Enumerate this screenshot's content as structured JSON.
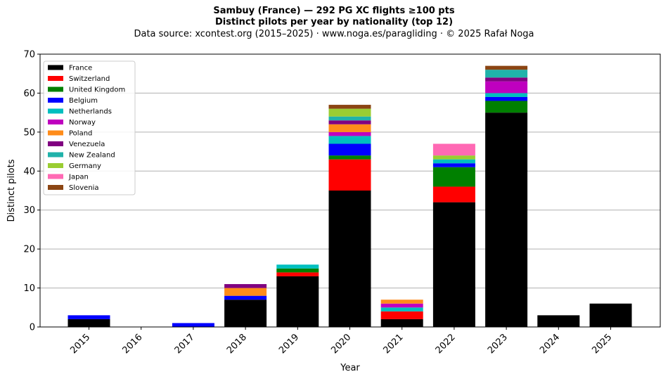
{
  "title_lines": [
    "Sambuy (France)  —  292 PG XC flights ≥100 pts",
    "Distinct pilots per year by nationality (top 12)",
    "Data source: xcontest.org (2015–2025)  ·  www.noga.es/paragliding  ·  © 2025 Rafał Noga"
  ],
  "chart_data": {
    "type": "bar",
    "stacked": true,
    "title": "Sambuy (France)  —  292 PG XC flights ≥100 pts",
    "subtitle": "Distinct pilots per year by nationality (top 12)",
    "xlabel": "Year",
    "ylabel": "Distinct pilots",
    "ylim": [
      0,
      70
    ],
    "yticks": [
      0,
      10,
      20,
      30,
      40,
      50,
      60,
      70
    ],
    "grid": "y",
    "legend_position": "top-left",
    "categories": [
      "2015",
      "2016",
      "2017",
      "2018",
      "2019",
      "2020",
      "2021",
      "2022",
      "2023",
      "2024",
      "2025"
    ],
    "series": [
      {
        "name": "France",
        "color": "#000000",
        "values": [
          2,
          0,
          0,
          7,
          13,
          35,
          2,
          32,
          55,
          3,
          6
        ]
      },
      {
        "name": "Switzerland",
        "color": "#ff0000",
        "values": [
          0,
          0,
          0,
          0,
          1,
          8,
          2,
          4,
          0,
          0,
          0
        ]
      },
      {
        "name": "United Kingdom",
        "color": "#008000",
        "values": [
          0,
          0,
          0,
          0,
          1,
          1,
          0,
          5,
          3,
          0,
          0
        ]
      },
      {
        "name": "Belgium",
        "color": "#0000ff",
        "values": [
          1,
          0,
          1,
          1,
          0,
          3,
          0,
          1,
          1,
          0,
          0
        ]
      },
      {
        "name": "Netherlands",
        "color": "#00bfbf",
        "values": [
          0,
          0,
          0,
          0,
          1,
          2,
          1,
          1,
          1,
          0,
          0
        ]
      },
      {
        "name": "Norway",
        "color": "#bf00bf",
        "values": [
          0,
          0,
          0,
          0,
          0,
          1,
          1,
          0,
          3,
          0,
          0
        ]
      },
      {
        "name": "Poland",
        "color": "#ff8c1a",
        "values": [
          0,
          0,
          0,
          2,
          0,
          2,
          1,
          0,
          0,
          0,
          0
        ]
      },
      {
        "name": "Venezuela",
        "color": "#800080",
        "values": [
          0,
          0,
          0,
          1,
          0,
          1,
          0,
          0,
          1,
          0,
          0
        ]
      },
      {
        "name": "New Zealand",
        "color": "#20b2aa",
        "values": [
          0,
          0,
          0,
          0,
          0,
          1,
          0,
          0,
          2,
          0,
          0
        ]
      },
      {
        "name": "Germany",
        "color": "#9acd32",
        "values": [
          0,
          0,
          0,
          0,
          0,
          2,
          0,
          1,
          0,
          0,
          0
        ]
      },
      {
        "name": "Japan",
        "color": "#ff69b4",
        "values": [
          0,
          0,
          0,
          0,
          0,
          0,
          0,
          3,
          0,
          0,
          0
        ]
      },
      {
        "name": "Slovenia",
        "color": "#8b4513",
        "values": [
          0,
          0,
          0,
          0,
          0,
          1,
          0,
          0,
          1,
          0,
          0
        ]
      }
    ]
  }
}
